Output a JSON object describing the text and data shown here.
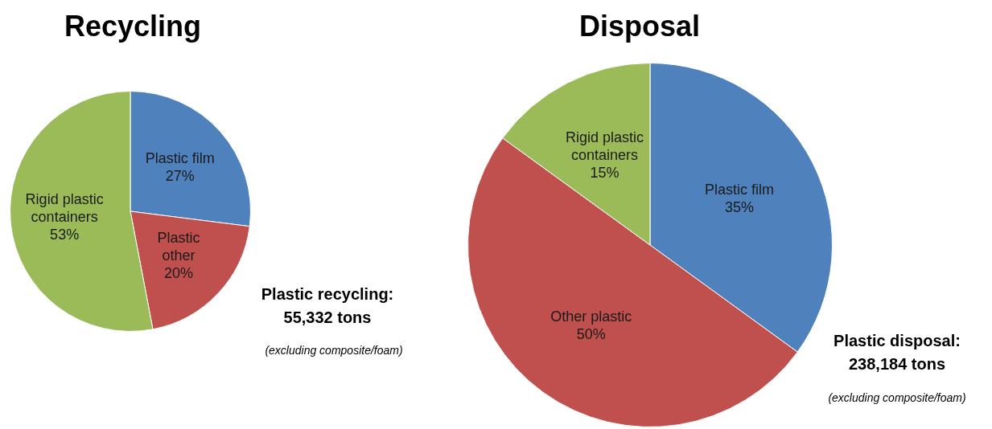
{
  "chart_data": [
    {
      "type": "pie",
      "title": "Recycling",
      "categories": [
        "Plastic film",
        "Plastic other",
        "Rigid plastic containers"
      ],
      "values": [
        27,
        20,
        53
      ],
      "colors": [
        "#4f81bd",
        "#c0504d",
        "#9bbb59"
      ],
      "value_labels": [
        "27%",
        "20%",
        "53%"
      ],
      "legend": false,
      "annotations": [
        "Plastic recycling: 55,332 tons",
        "(excluding composite/foam)"
      ]
    },
    {
      "type": "pie",
      "title": "Disposal",
      "categories": [
        "Plastic film",
        "Other plastic",
        "Rigid plastic containers"
      ],
      "values": [
        35,
        50,
        15
      ],
      "colors": [
        "#4f81bd",
        "#c0504d",
        "#9bbb59"
      ],
      "value_labels": [
        "35%",
        "50%",
        "15%"
      ],
      "legend": false,
      "annotations": [
        "Plastic disposal: 238,184 tons",
        "(excluding composite/foam)"
      ]
    }
  ]
}
